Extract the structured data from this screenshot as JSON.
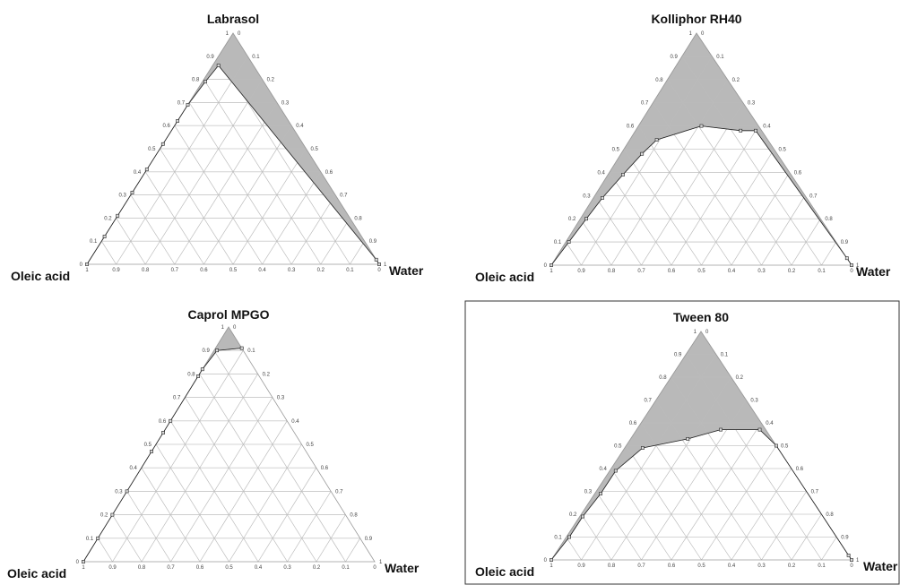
{
  "chart_data": [
    {
      "type": "ternary",
      "title": "Labrasol",
      "left_vertex_label": "Oleic acid",
      "right_vertex_label": "Water",
      "ticks": [
        "0",
        "0.1",
        "0.2",
        "0.3",
        "0.4",
        "0.5",
        "0.6",
        "0.7",
        "0.8",
        "0.9",
        "1"
      ],
      "boundary": [
        {
          "oleic": 1.0,
          "surf": 0.0,
          "water": 0.0
        },
        {
          "oleic": 0.88,
          "surf": 0.12,
          "water": 0.0
        },
        {
          "oleic": 0.79,
          "surf": 0.21,
          "water": 0.0
        },
        {
          "oleic": 0.69,
          "surf": 0.31,
          "water": 0.0
        },
        {
          "oleic": 0.59,
          "surf": 0.41,
          "water": 0.0
        },
        {
          "oleic": 0.48,
          "surf": 0.52,
          "water": 0.0
        },
        {
          "oleic": 0.38,
          "surf": 0.62,
          "water": 0.0
        },
        {
          "oleic": 0.31,
          "surf": 0.69,
          "water": 0.0
        },
        {
          "oleic": 0.2,
          "surf": 0.79,
          "water": 0.01
        },
        {
          "oleic": 0.12,
          "surf": 0.86,
          "water": 0.02
        },
        {
          "oleic": 0.0,
          "surf": 0.02,
          "water": 0.98
        },
        {
          "oleic": 0.0,
          "surf": 0.0,
          "water": 1.0
        }
      ]
    },
    {
      "type": "ternary",
      "title": "Kolliphor RH40",
      "left_vertex_label": "Oleic acid",
      "right_vertex_label": "Water",
      "ticks": [
        "0",
        "0.1",
        "0.2",
        "0.3",
        "0.4",
        "0.5",
        "0.6",
        "0.7",
        "0.8",
        "0.9",
        "1"
      ],
      "boundary": [
        {
          "oleic": 1.0,
          "surf": 0.0,
          "water": 0.0
        },
        {
          "oleic": 0.89,
          "surf": 0.1,
          "water": 0.01
        },
        {
          "oleic": 0.78,
          "surf": 0.2,
          "water": 0.02
        },
        {
          "oleic": 0.68,
          "surf": 0.29,
          "water": 0.03
        },
        {
          "oleic": 0.56,
          "surf": 0.39,
          "water": 0.05
        },
        {
          "oleic": 0.45,
          "surf": 0.48,
          "water": 0.07
        },
        {
          "oleic": 0.37,
          "surf": 0.54,
          "water": 0.09
        },
        {
          "oleic": 0.19,
          "surf": 0.6,
          "water": 0.21
        },
        {
          "oleic": 0.07,
          "surf": 0.58,
          "water": 0.35
        },
        {
          "oleic": 0.02,
          "surf": 0.58,
          "water": 0.4
        },
        {
          "oleic": 0.0,
          "surf": 0.03,
          "water": 0.97
        },
        {
          "oleic": 0.0,
          "surf": 0.0,
          "water": 1.0
        }
      ]
    },
    {
      "type": "ternary",
      "title": "Caprol MPGO",
      "left_vertex_label": "Oleic acid",
      "right_vertex_label": "Water",
      "ticks": [
        "0",
        "0.1",
        "0.2",
        "0.3",
        "0.4",
        "0.5",
        "0.6",
        "0.7",
        "0.8",
        "0.9",
        "1"
      ],
      "boundary": [
        {
          "oleic": 1.0,
          "surf": 0.0,
          "water": 0.0
        },
        {
          "oleic": 0.9,
          "surf": 0.1,
          "water": 0.0
        },
        {
          "oleic": 0.8,
          "surf": 0.2,
          "water": 0.0
        },
        {
          "oleic": 0.7,
          "surf": 0.3,
          "water": 0.0
        },
        {
          "oleic": 0.53,
          "surf": 0.47,
          "water": 0.0
        },
        {
          "oleic": 0.45,
          "surf": 0.55,
          "water": 0.0
        },
        {
          "oleic": 0.4,
          "surf": 0.6,
          "water": 0.0
        },
        {
          "oleic": 0.21,
          "surf": 0.79,
          "water": 0.0
        },
        {
          "oleic": 0.18,
          "surf": 0.82,
          "water": 0.0
        },
        {
          "oleic": 0.09,
          "surf": 0.9,
          "water": 0.01
        },
        {
          "oleic": 0.0,
          "surf": 0.91,
          "water": 0.09
        }
      ]
    },
    {
      "type": "ternary",
      "title": "Tween 80",
      "left_vertex_label": "Oleic acid",
      "right_vertex_label": "Water",
      "ticks": [
        "0",
        "0.1",
        "0.2",
        "0.3",
        "0.4",
        "0.5",
        "0.6",
        "0.7",
        "0.8",
        "0.9",
        "1"
      ],
      "boundary": [
        {
          "oleic": 1.0,
          "surf": 0.0,
          "water": 0.0
        },
        {
          "oleic": 0.89,
          "surf": 0.1,
          "water": 0.01
        },
        {
          "oleic": 0.8,
          "surf": 0.19,
          "water": 0.01
        },
        {
          "oleic": 0.69,
          "surf": 0.29,
          "water": 0.02
        },
        {
          "oleic": 0.59,
          "surf": 0.39,
          "water": 0.02
        },
        {
          "oleic": 0.45,
          "surf": 0.49,
          "water": 0.06
        },
        {
          "oleic": 0.28,
          "surf": 0.53,
          "water": 0.19
        },
        {
          "oleic": 0.15,
          "surf": 0.57,
          "water": 0.28
        },
        {
          "oleic": 0.02,
          "surf": 0.57,
          "water": 0.41
        },
        {
          "oleic": 0.0,
          "surf": 0.5,
          "water": 0.5
        },
        {
          "oleic": 0.0,
          "surf": 0.02,
          "water": 0.98
        },
        {
          "oleic": 0.0,
          "surf": 0.0,
          "water": 1.0
        }
      ]
    }
  ]
}
